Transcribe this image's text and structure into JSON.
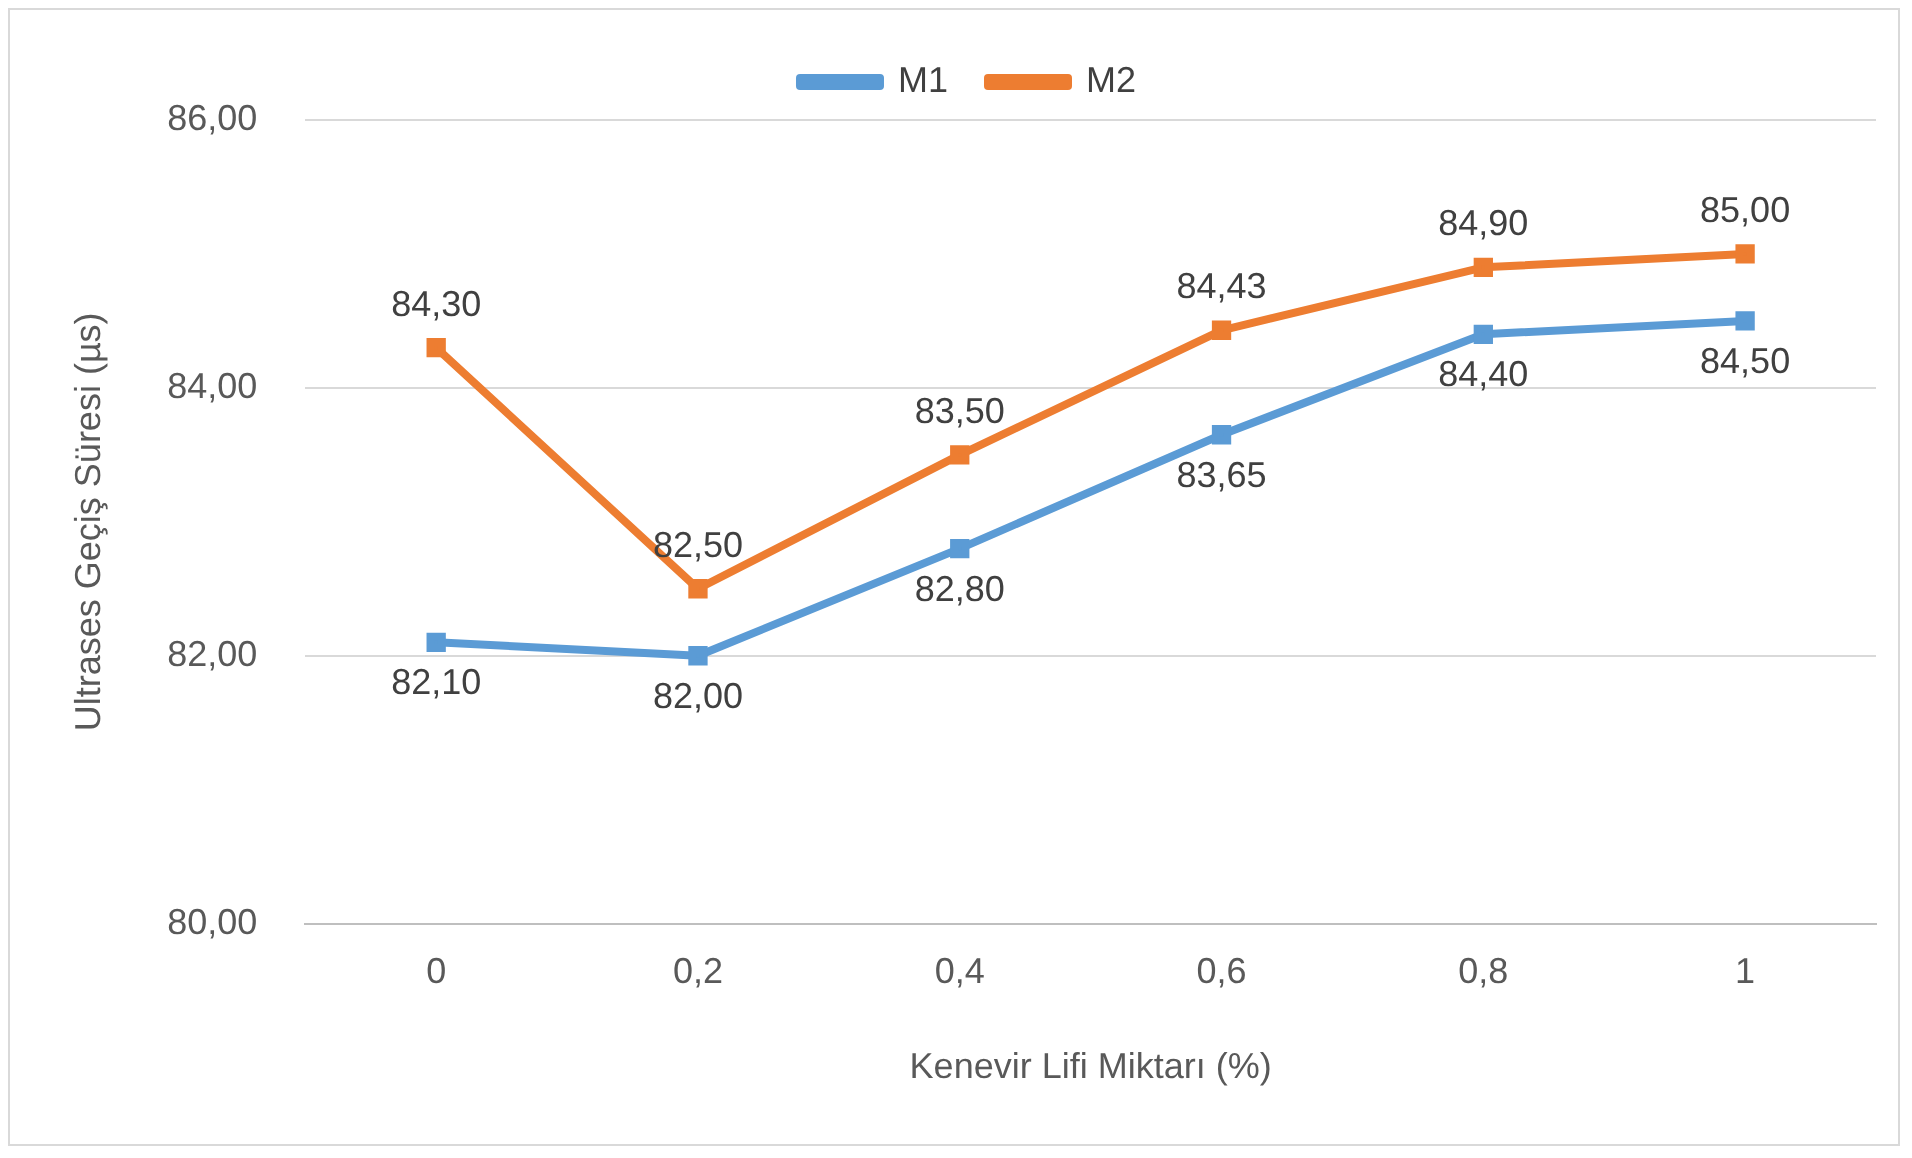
{
  "chart_data": {
    "type": "line",
    "xlabel": "Kenevir Lifi Miktarı (%)",
    "ylabel": "Ultrases Geçiş Süresi (µs)",
    "categories": [
      "0",
      "0,2",
      "0,4",
      "0,6",
      "0,8",
      "1"
    ],
    "series": [
      {
        "name": "M1",
        "color": "#5b9bd5",
        "values": [
          82.1,
          82.0,
          82.8,
          83.65,
          84.4,
          84.5
        ],
        "value_labels": [
          "82,10",
          "82,00",
          "82,80",
          "83,65",
          "84,40",
          "84,50"
        ]
      },
      {
        "name": "M2",
        "color": "#ed7d31",
        "values": [
          84.3,
          82.5,
          83.5,
          84.43,
          84.9,
          85.0
        ],
        "value_labels": [
          "84,30",
          "82,50",
          "83,50",
          "84,43",
          "84,90",
          "85,00"
        ]
      }
    ],
    "ylim": [
      80,
      86
    ],
    "yticks": [
      {
        "value": 80,
        "label": "80,00"
      },
      {
        "value": 82,
        "label": "82,00"
      },
      {
        "value": 84,
        "label": "84,00"
      },
      {
        "value": 86,
        "label": "86,00"
      }
    ],
    "grid": "y",
    "legend": "top",
    "marker": "square",
    "line_style": "solid"
  }
}
